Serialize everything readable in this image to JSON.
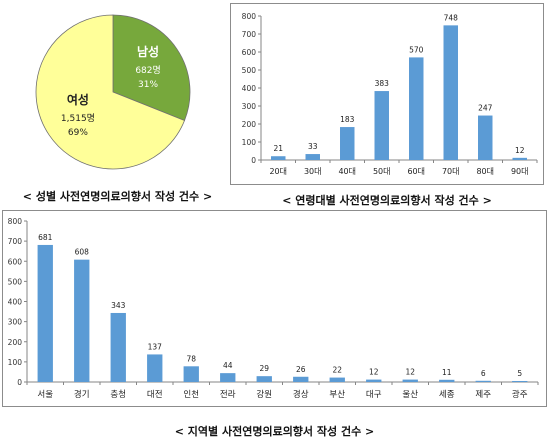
{
  "captions": {
    "gender": "< 성별 사전연명의료의향서 작성 건수 >",
    "age": "< 연령대별 사전연명의료의향서 작성 건수 >",
    "region": "< 지역별 사전연명의료의향서 작성 건수 >"
  },
  "colors": {
    "bar": "#5b9bd5",
    "female": "#ffff99",
    "male": "#77a83c"
  },
  "chart_data": [
    {
      "type": "pie",
      "categories": [
        "남성",
        "여성"
      ],
      "values": [
        682,
        1515
      ],
      "value_labels": [
        "682명",
        "1,515명"
      ],
      "percent_labels": [
        "31%",
        "69%"
      ],
      "colors": [
        "#77a83c",
        "#ffff99"
      ]
    },
    {
      "type": "bar",
      "categories": [
        "20대",
        "30대",
        "40대",
        "50대",
        "60대",
        "70대",
        "80대",
        "90대"
      ],
      "values": [
        21,
        33,
        183,
        383,
        570,
        748,
        247,
        12
      ],
      "ylim": [
        0,
        800
      ],
      "yticks": [
        0,
        100,
        200,
        300,
        400,
        500,
        600,
        700,
        800
      ],
      "grid": false
    },
    {
      "type": "bar",
      "categories": [
        "서울",
        "경기",
        "충청",
        "대전",
        "인천",
        "전라",
        "강원",
        "경상",
        "부산",
        "대구",
        "울산",
        "세종",
        "제주",
        "광주"
      ],
      "values": [
        681,
        608,
        343,
        137,
        78,
        44,
        29,
        26,
        22,
        12,
        12,
        11,
        6,
        5
      ],
      "ylim": [
        0,
        800
      ],
      "yticks": [
        0,
        100,
        200,
        300,
        400,
        500,
        600,
        700,
        800
      ],
      "grid": false
    }
  ]
}
